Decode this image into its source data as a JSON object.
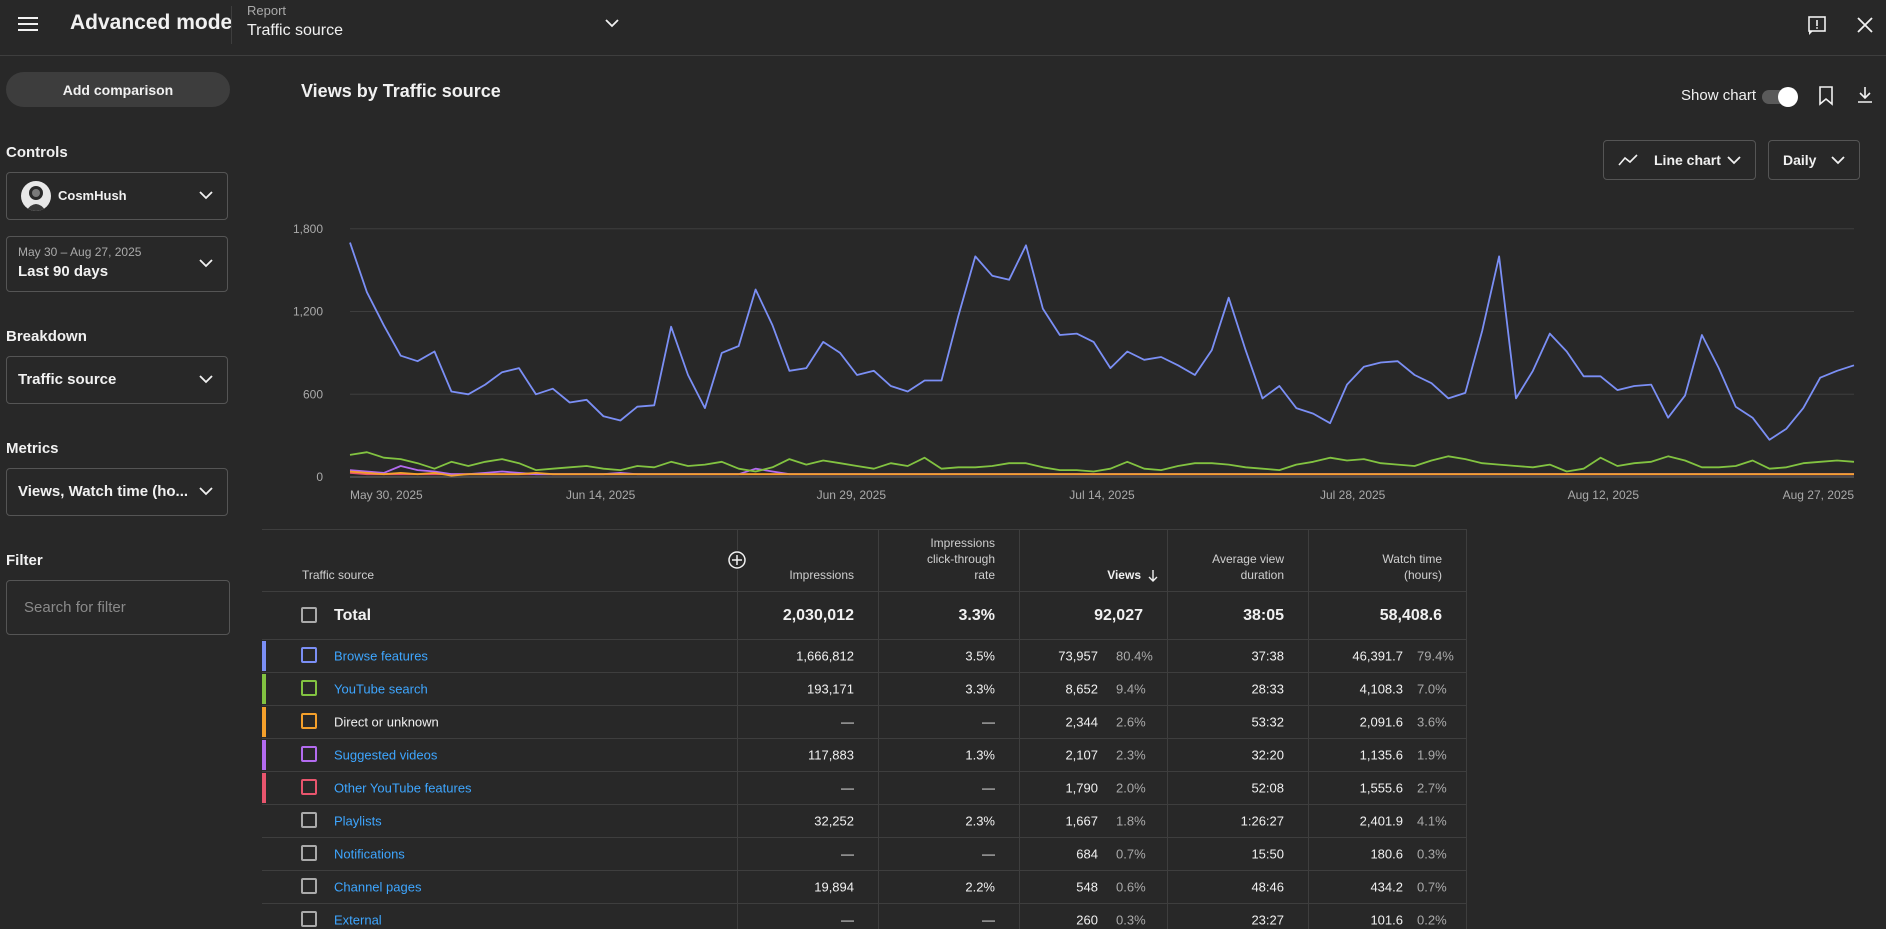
{
  "topbar": {
    "title": "Advanced mode",
    "report_label": "Report",
    "report_value": "Traffic source"
  },
  "sidebar": {
    "add_comparison": "Add comparison",
    "controls_label": "Controls",
    "channel_name": "CosmHush",
    "date_range": "May 30 – Aug 27, 2025",
    "date_preset": "Last 90 days",
    "breakdown_label": "Breakdown",
    "breakdown_value": "Traffic source",
    "metrics_label": "Metrics",
    "metrics_value": "Views, Watch time (ho...",
    "filter_label": "Filter",
    "filter_placeholder": "Search for filter"
  },
  "chart_header": {
    "title": "Views by Traffic source",
    "show_chart_label": "Show chart",
    "show_chart_on": true,
    "chart_type_label": "Line chart",
    "interval_label": "Daily"
  },
  "chart_data": {
    "type": "line",
    "x_tick_labels": [
      "May 30, 2025",
      "Jun 14, 2025",
      "Jun 29, 2025",
      "Jul 14, 2025",
      "Jul 28, 2025",
      "Aug 12, 2025",
      "Aug 27, 2025"
    ],
    "y_ticks": [
      0,
      600,
      1200,
      1800
    ],
    "ylim": [
      0,
      1900
    ],
    "grid": true,
    "series": [
      {
        "name": "Browse features",
        "color": "#7b8ff5",
        "values": [
          1700,
          1340,
          1100,
          880,
          840,
          910,
          620,
          600,
          670,
          760,
          790,
          600,
          640,
          540,
          560,
          440,
          410,
          510,
          520,
          1090,
          740,
          500,
          900,
          950,
          1360,
          1100,
          770,
          790,
          980,
          900,
          740,
          770,
          660,
          620,
          700,
          700,
          1170,
          1600,
          1460,
          1430,
          1680,
          1220,
          1030,
          1040,
          980,
          790,
          910,
          850,
          870,
          810,
          740,
          920,
          1300,
          920,
          570,
          660,
          500,
          460,
          390,
          670,
          800,
          830,
          840,
          740,
          680,
          570,
          610,
          1060,
          1600,
          570,
          770,
          1040,
          910,
          730,
          730,
          630,
          660,
          670,
          430,
          590,
          1030,
          790,
          510,
          430,
          270,
          350,
          500,
          720,
          770,
          810
        ]
      },
      {
        "name": "YouTube search",
        "color": "#82c341",
        "values": [
          160,
          180,
          140,
          130,
          100,
          60,
          110,
          80,
          110,
          130,
          100,
          50,
          60,
          70,
          80,
          60,
          50,
          80,
          70,
          110,
          80,
          90,
          110,
          60,
          40,
          70,
          130,
          90,
          120,
          100,
          80,
          60,
          100,
          80,
          140,
          60,
          70,
          70,
          80,
          100,
          100,
          70,
          50,
          50,
          40,
          60,
          110,
          60,
          50,
          80,
          100,
          100,
          90,
          70,
          60,
          50,
          90,
          110,
          140,
          120,
          130,
          100,
          90,
          80,
          120,
          150,
          130,
          100,
          90,
          80,
          70,
          90,
          40,
          60,
          140,
          80,
          100,
          110,
          150,
          120,
          70,
          70,
          80,
          120,
          60,
          70,
          100,
          110,
          120,
          110
        ]
      },
      {
        "name": "Direct or unknown",
        "color": "#f4a02b",
        "values": [
          40,
          30,
          20,
          30,
          20,
          30,
          10,
          20,
          20,
          20,
          20,
          30,
          20,
          20,
          20,
          20,
          20,
          20,
          20,
          20,
          20,
          20,
          20,
          20,
          20,
          20,
          20,
          20,
          20,
          20,
          20,
          20,
          20,
          20,
          20,
          20,
          20,
          20,
          20,
          20,
          20,
          20,
          20,
          20,
          20,
          20,
          20,
          20,
          20,
          20,
          20,
          20,
          20,
          20,
          20,
          20,
          20,
          20,
          20,
          20,
          20,
          20,
          20,
          20,
          20,
          20,
          20,
          20,
          20,
          20,
          20,
          20,
          20,
          20,
          20,
          20,
          20,
          20,
          20,
          20,
          20,
          20,
          20,
          20,
          20,
          20,
          20,
          20,
          20,
          20
        ]
      },
      {
        "name": "Suggested videos",
        "color": "#b36bf0",
        "values": [
          50,
          40,
          30,
          80,
          50,
          40,
          20,
          20,
          30,
          40,
          30,
          20,
          20,
          20,
          20,
          20,
          30,
          20,
          20,
          20,
          20,
          20,
          20,
          20,
          60,
          40,
          20,
          20,
          20,
          20,
          20,
          20,
          20,
          20,
          20,
          20,
          20,
          20,
          20,
          20,
          20,
          20,
          20,
          20,
          20,
          20,
          20,
          20,
          20,
          20,
          20,
          20,
          20,
          20,
          20,
          20,
          20,
          20,
          20,
          20,
          20,
          20,
          20,
          20,
          20,
          20,
          20,
          20,
          20,
          20,
          20,
          20,
          20,
          20,
          20,
          20,
          20,
          20,
          20,
          20,
          20,
          20,
          20,
          20,
          20,
          20,
          20,
          20,
          20,
          20
        ]
      },
      {
        "name": "Other YouTube features",
        "color": "#e8556d",
        "values": [
          30,
          20,
          20,
          20,
          20,
          20,
          20,
          20,
          20,
          20,
          20,
          20,
          20,
          20,
          20,
          20,
          20,
          20,
          20,
          20,
          20,
          20,
          20,
          20,
          20,
          20,
          20,
          20,
          20,
          20,
          20,
          20,
          20,
          20,
          20,
          20,
          20,
          20,
          20,
          20,
          20,
          20,
          20,
          20,
          20,
          20,
          20,
          20,
          20,
          20,
          20,
          20,
          20,
          20,
          20,
          20,
          20,
          20,
          20,
          20,
          20,
          20,
          20,
          20,
          20,
          20,
          20,
          20,
          20,
          20,
          20,
          20,
          20,
          20,
          20,
          20,
          20,
          20,
          20,
          20,
          20,
          20,
          20,
          20,
          20,
          20,
          20,
          20,
          20,
          20
        ]
      }
    ]
  },
  "table": {
    "headers": {
      "source": "Traffic source",
      "impressions": "Impressions",
      "ctr": [
        "Impressions",
        "click-through",
        "rate"
      ],
      "views": "Views",
      "avd": [
        "Average view",
        "duration"
      ],
      "watch": [
        "Watch time",
        "(hours)"
      ]
    },
    "total": {
      "label": "Total",
      "impressions": "2,030,012",
      "ctr": "3.3%",
      "views": "92,027",
      "avd": "38:05",
      "watch": "58,408.6"
    },
    "rows": [
      {
        "name": "Browse features",
        "link": true,
        "stripe": "#7b8ff5",
        "impressions": "1,666,812",
        "ctr": "3.5%",
        "views": "73,957",
        "views_pct": "80.4%",
        "avd": "37:38",
        "watch": "46,391.7",
        "watch_pct": "79.4%"
      },
      {
        "name": "YouTube search",
        "link": true,
        "stripe": "#82c341",
        "impressions": "193,171",
        "ctr": "3.3%",
        "views": "8,652",
        "views_pct": "9.4%",
        "avd": "28:33",
        "watch": "4,108.3",
        "watch_pct": "7.0%"
      },
      {
        "name": "Direct or unknown",
        "link": false,
        "stripe": "#f4a02b",
        "impressions": "—",
        "ctr": "—",
        "views": "2,344",
        "views_pct": "2.6%",
        "avd": "53:32",
        "watch": "2,091.6",
        "watch_pct": "3.6%"
      },
      {
        "name": "Suggested videos",
        "link": true,
        "stripe": "#b36bf0",
        "impressions": "117,883",
        "ctr": "1.3%",
        "views": "2,107",
        "views_pct": "2.3%",
        "avd": "32:20",
        "watch": "1,135.6",
        "watch_pct": "1.9%"
      },
      {
        "name": "Other YouTube features",
        "link": true,
        "stripe": "#e8556d",
        "impressions": "—",
        "ctr": "—",
        "views": "1,790",
        "views_pct": "2.0%",
        "avd": "52:08",
        "watch": "1,555.6",
        "watch_pct": "2.7%"
      },
      {
        "name": "Playlists",
        "link": true,
        "stripe": "",
        "impressions": "32,252",
        "ctr": "2.3%",
        "views": "1,667",
        "views_pct": "1.8%",
        "avd": "1:26:27",
        "watch": "2,401.9",
        "watch_pct": "4.1%"
      },
      {
        "name": "Notifications",
        "link": true,
        "stripe": "",
        "impressions": "—",
        "ctr": "—",
        "views": "684",
        "views_pct": "0.7%",
        "avd": "15:50",
        "watch": "180.6",
        "watch_pct": "0.3%"
      },
      {
        "name": "Channel pages",
        "link": true,
        "stripe": "",
        "impressions": "19,894",
        "ctr": "2.2%",
        "views": "548",
        "views_pct": "0.6%",
        "avd": "48:46",
        "watch": "434.2",
        "watch_pct": "0.7%"
      },
      {
        "name": "External",
        "link": true,
        "stripe": "",
        "impressions": "—",
        "ctr": "—",
        "views": "260",
        "views_pct": "0.3%",
        "avd": "23:27",
        "watch": "101.6",
        "watch_pct": "0.2%"
      }
    ]
  }
}
